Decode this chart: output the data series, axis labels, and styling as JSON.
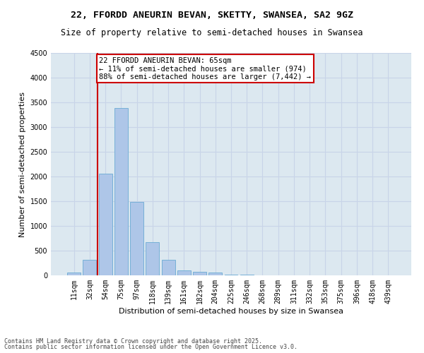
{
  "title1": "22, FFORDD ANEURIN BEVAN, SKETTY, SWANSEA, SA2 9GZ",
  "title2": "Size of property relative to semi-detached houses in Swansea",
  "xlabel": "Distribution of semi-detached houses by size in Swansea",
  "ylabel": "Number of semi-detached properties",
  "categories": [
    "11sqm",
    "32sqm",
    "54sqm",
    "75sqm",
    "97sqm",
    "118sqm",
    "139sqm",
    "161sqm",
    "182sqm",
    "204sqm",
    "225sqm",
    "246sqm",
    "268sqm",
    "289sqm",
    "311sqm",
    "332sqm",
    "353sqm",
    "375sqm",
    "396sqm",
    "418sqm",
    "439sqm"
  ],
  "values": [
    55,
    320,
    2060,
    3380,
    1490,
    670,
    310,
    105,
    65,
    55,
    20,
    10,
    5,
    5,
    2,
    2,
    2,
    1,
    1,
    1,
    1
  ],
  "bar_color": "#aec6e8",
  "bar_edge_color": "#6aaad4",
  "vline_color": "#cc0000",
  "annotation_text1": "22 FFORDD ANEURIN BEVAN: 65sqm",
  "annotation_text2": "← 11% of semi-detached houses are smaller (974)",
  "annotation_text3": "88% of semi-detached houses are larger (7,442) →",
  "box_color": "#cc0000",
  "ylim": [
    0,
    4500
  ],
  "yticks": [
    0,
    500,
    1000,
    1500,
    2000,
    2500,
    3000,
    3500,
    4000,
    4500
  ],
  "grid_color": "#c8d4e8",
  "bg_color": "#dce8f0",
  "footer1": "Contains HM Land Registry data © Crown copyright and database right 2025.",
  "footer2": "Contains public sector information licensed under the Open Government Licence v3.0.",
  "title_fontsize": 9.5,
  "subtitle_fontsize": 8.5,
  "axis_label_fontsize": 8,
  "tick_fontsize": 7,
  "footer_fontsize": 6,
  "annotation_fontsize": 7.5
}
